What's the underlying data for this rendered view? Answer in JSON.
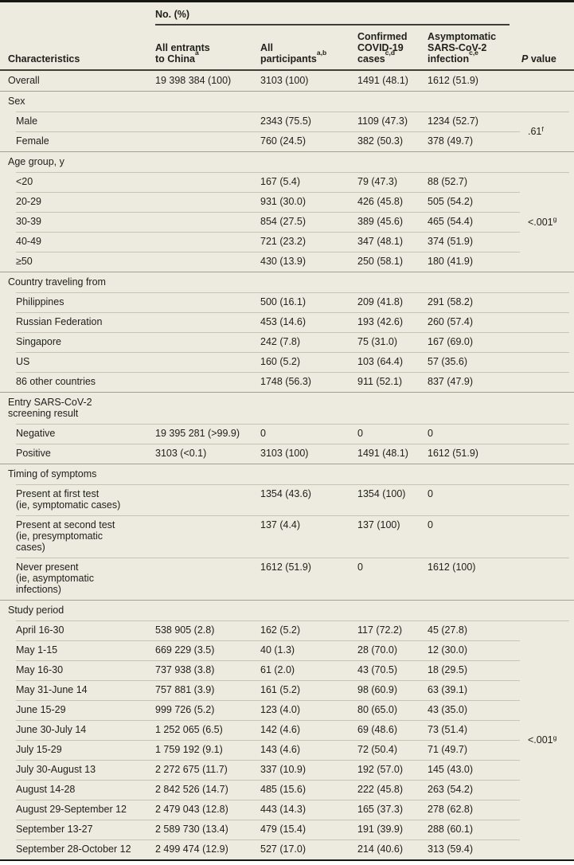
{
  "header": {
    "characteristics_label": "Characteristics",
    "spanner": "No. (%)",
    "columns": [
      {
        "label": "All entrants\nto China",
        "sup": "a"
      },
      {
        "label": "All\nparticipants",
        "sup": "a,b"
      },
      {
        "label": "Confirmed\nCOVID-19\ncases",
        "sup": "c,d"
      },
      {
        "label": "Asymptomatic\nSARS-CoV-2\ninfection",
        "sup": "c,e"
      }
    ],
    "p_italic": "P",
    "p_rest": " value"
  },
  "sections": [
    {
      "type": "row",
      "label": "Overall",
      "values": [
        "19 398 384 (100)",
        "3103 (100)",
        "1491 (48.1)",
        "1612 (51.9)"
      ]
    },
    {
      "type": "group",
      "title": "Sex",
      "p": ".61",
      "p_sup": "f",
      "rows": [
        {
          "label": "Male",
          "values": [
            "",
            "2343 (75.5)",
            "1109 (47.3)",
            "1234 (52.7)"
          ]
        },
        {
          "label": "Female",
          "values": [
            "",
            "760 (24.5)",
            "382 (50.3)",
            "378 (49.7)"
          ]
        }
      ]
    },
    {
      "type": "group",
      "title": "Age group, y",
      "p": "<.001",
      "p_sup": "g",
      "rows": [
        {
          "label": "<20",
          "values": [
            "",
            "167 (5.4)",
            "79 (47.3)",
            "88 (52.7)"
          ]
        },
        {
          "label": "20-29",
          "values": [
            "",
            "931 (30.0)",
            "426 (45.8)",
            "505 (54.2)"
          ]
        },
        {
          "label": "30-39",
          "values": [
            "",
            "854 (27.5)",
            "389 (45.6)",
            "465 (54.4)"
          ]
        },
        {
          "label": "40-49",
          "values": [
            "",
            "721 (23.2)",
            "347 (48.1)",
            "374 (51.9)"
          ]
        },
        {
          "label": "≥50",
          "values": [
            "",
            "430 (13.9)",
            "250 (58.1)",
            "180 (41.9)"
          ]
        }
      ]
    },
    {
      "type": "group",
      "title": "Country traveling from",
      "rows": [
        {
          "label": "Philippines",
          "values": [
            "",
            "500 (16.1)",
            "209 (41.8)",
            "291 (58.2)"
          ]
        },
        {
          "label": "Russian Federation",
          "values": [
            "",
            "453 (14.6)",
            "193 (42.6)",
            "260 (57.4)"
          ]
        },
        {
          "label": "Singapore",
          "values": [
            "",
            "242 (7.8)",
            "75 (31.0)",
            "167 (69.0)"
          ]
        },
        {
          "label": "US",
          "values": [
            "",
            "160 (5.2)",
            "103 (64.4)",
            "57 (35.6)"
          ]
        },
        {
          "label": "86 other countries",
          "values": [
            "",
            "1748 (56.3)",
            "911 (52.1)",
            "837 (47.9)"
          ]
        }
      ]
    },
    {
      "type": "group",
      "title": "Entry SARS-CoV-2\nscreening result",
      "rows": [
        {
          "label": "Negative",
          "values": [
            "19 395 281 (>99.9)",
            "0",
            "0",
            "0"
          ]
        },
        {
          "label": "Positive",
          "values": [
            "3103 (<0.1)",
            "3103 (100)",
            "1491 (48.1)",
            "1612 (51.9)"
          ]
        }
      ]
    },
    {
      "type": "group",
      "title": "Timing of symptoms",
      "rows": [
        {
          "label": "Present at first test\n(ie, symptomatic cases)",
          "values": [
            "",
            "1354 (43.6)",
            "1354 (100)",
            "0"
          ]
        },
        {
          "label": "Present at second test\n(ie, presymptomatic\ncases)",
          "values": [
            "",
            "137 (4.4)",
            "137 (100)",
            "0"
          ]
        },
        {
          "label": "Never present\n(ie, asymptomatic\ninfections)",
          "values": [
            "",
            "1612 (51.9)",
            "0",
            "1612 (100)"
          ]
        }
      ]
    },
    {
      "type": "group",
      "title": "Study period",
      "p": "<.001",
      "p_sup": "g",
      "rows": [
        {
          "label": "April 16-30",
          "values": [
            "538 905 (2.8)",
            "162 (5.2)",
            "117 (72.2)",
            "45 (27.8)"
          ]
        },
        {
          "label": "May 1-15",
          "values": [
            "669 229 (3.5)",
            "40 (1.3)",
            "28 (70.0)",
            "12 (30.0)"
          ]
        },
        {
          "label": "May 16-30",
          "values": [
            "737 938 (3.8)",
            "61 (2.0)",
            "43 (70.5)",
            "18 (29.5)"
          ]
        },
        {
          "label": "May 31-June 14",
          "values": [
            "757 881 (3.9)",
            "161 (5.2)",
            "98 (60.9)",
            "63 (39.1)"
          ]
        },
        {
          "label": "June 15-29",
          "values": [
            "999 726 (5.2)",
            "123 (4.0)",
            "80 (65.0)",
            "43 (35.0)"
          ]
        },
        {
          "label": "June 30-July 14",
          "values": [
            "1 252 065 (6.5)",
            "142 (4.6)",
            "69 (48.6)",
            "73 (51.4)"
          ]
        },
        {
          "label": "July 15-29",
          "values": [
            "1 759 192 (9.1)",
            "143 (4.6)",
            "72 (50.4)",
            "71 (49.7)"
          ]
        },
        {
          "label": "July 30-August 13",
          "values": [
            "2 272 675 (11.7)",
            "337 (10.9)",
            "192 (57.0)",
            "145 (43.0)"
          ]
        },
        {
          "label": "August 14-28",
          "values": [
            "2 842 526 (14.7)",
            "485 (15.6)",
            "222 (45.8)",
            "263 (54.2)"
          ]
        },
        {
          "label": "August 29-September 12",
          "values": [
            "2 479 043 (12.8)",
            "443 (14.3)",
            "165 (37.3)",
            "278 (62.8)"
          ]
        },
        {
          "label": "September 13-27",
          "values": [
            "2 589 730 (13.4)",
            "479 (15.4)",
            "191 (39.9)",
            "288 (60.1)"
          ]
        },
        {
          "label": "September 28-October 12",
          "values": [
            "2 499 474 (12.9)",
            "527 (17.0)",
            "214 (40.6)",
            "313 (59.4)"
          ]
        }
      ]
    }
  ]
}
